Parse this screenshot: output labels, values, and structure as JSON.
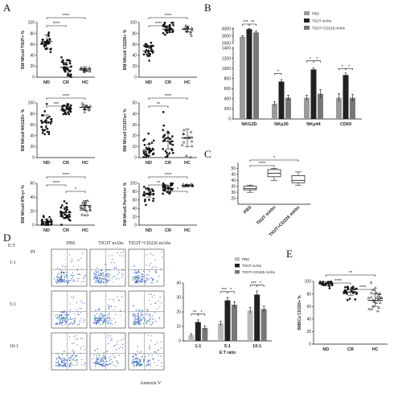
{
  "chart_data": [
    {
      "panel": "A",
      "type": "scatter",
      "ylabel": "BM NKcell TIGIT+ %",
      "categories": [
        "ND",
        "CR",
        "HC"
      ],
      "ylim": [
        0,
        100
      ],
      "yticks": [
        0,
        20,
        40,
        60,
        80,
        100
      ],
      "groups": [
        {
          "name": "ND",
          "mean": 65,
          "sd": 12
        },
        {
          "name": "CR",
          "mean": 18,
          "sd": 9
        },
        {
          "name": "HC",
          "mean": 15,
          "sd": 4
        }
      ],
      "significance": [
        "****",
        "****"
      ]
    },
    {
      "panel": "A",
      "type": "scatter",
      "ylabel": "BM NKcell CD226+ %",
      "categories": [
        "ND",
        "CR",
        "HC"
      ],
      "ylim": [
        0,
        100
      ],
      "yticks": [
        0,
        20,
        40,
        60,
        80,
        100
      ],
      "groups": [
        {
          "name": "ND",
          "mean": 48,
          "sd": 10
        },
        {
          "name": "CR",
          "mean": 88,
          "sd": 6
        },
        {
          "name": "HC",
          "mean": 88,
          "sd": 5
        }
      ],
      "significance": [
        "****",
        "****"
      ]
    },
    {
      "panel": "A",
      "type": "scatter",
      "ylabel": "BM NKcell NKG2D+ %",
      "categories": [
        "ND",
        "CR",
        "HC"
      ],
      "ylim": [
        0,
        100
      ],
      "yticks": [
        0,
        20,
        40,
        60,
        80,
        100
      ],
      "groups": [
        {
          "name": "ND",
          "mean": 65,
          "sd": 13
        },
        {
          "name": "CR",
          "mean": 87,
          "sd": 7
        },
        {
          "name": "HC",
          "mean": 92,
          "sd": 4
        }
      ],
      "significance": [
        "***",
        "****"
      ]
    },
    {
      "panel": "A",
      "type": "scatter",
      "ylabel": "BM NKcell CD107a+ %",
      "categories": [
        "ND",
        "CR",
        "HC"
      ],
      "ylim": [
        0,
        50
      ],
      "yticks": [
        0,
        10,
        20,
        30,
        40,
        50
      ],
      "groups": [
        {
          "name": "ND",
          "mean": 7,
          "sd": 5
        },
        {
          "name": "CR",
          "mean": 15,
          "sd": 7
        },
        {
          "name": "HC",
          "mean": 18,
          "sd": 8
        }
      ],
      "significance": [
        "**",
        "****"
      ]
    },
    {
      "panel": "A",
      "type": "scatter",
      "ylabel": "BM NKcell IFN-γ+ %",
      "categories": [
        "ND",
        "CR",
        "HC"
      ],
      "ylim": [
        0,
        60
      ],
      "yticks": [
        0,
        20,
        40,
        60
      ],
      "groups": [
        {
          "name": "ND",
          "mean": 5,
          "sd": 4
        },
        {
          "name": "CR",
          "mean": 18,
          "sd": 8
        },
        {
          "name": "HC",
          "mean": 28,
          "sd": 7
        }
      ],
      "significance": [
        "****",
        "*",
        "****"
      ]
    },
    {
      "panel": "A",
      "type": "scatter",
      "ylabel": "BM NKcell Perforin+ %",
      "categories": [
        "ND",
        "CR",
        "HC"
      ],
      "ylim": [
        0,
        100
      ],
      "yticks": [
        0,
        20,
        40,
        60,
        80,
        100
      ],
      "groups": [
        {
          "name": "ND",
          "mean": 75,
          "sd": 8
        },
        {
          "name": "CR",
          "mean": 88,
          "sd": 7
        },
        {
          "name": "HC",
          "mean": 95,
          "sd": 2
        }
      ],
      "significance": [
        "**",
        "*",
        "****"
      ]
    },
    {
      "panel": "B",
      "type": "bar",
      "categories": [
        "NKG2D",
        "NKp30",
        "NKp44",
        "CD69"
      ],
      "series": [
        {
          "name": "PBS",
          "values": [
            2900,
            300,
            420,
            420
          ],
          "errors": [
            150,
            40,
            50,
            80
          ],
          "color": "#9a9a9a"
        },
        {
          "name": "TIGIT mAbs",
          "values": [
            3950,
            740,
            980,
            870
          ],
          "errors": [
            100,
            40,
            30,
            40
          ],
          "color": "#222222"
        },
        {
          "name": "TIGIT+CD226 mAbs",
          "values": [
            3500,
            420,
            500,
            420
          ],
          "errors": [
            200,
            50,
            80,
            70
          ],
          "color": "#777777"
        }
      ],
      "yticks": [
        0,
        200,
        400,
        600,
        800,
        1000,
        1200,
        1400,
        2000,
        3000,
        4000
      ],
      "significance": [
        "***",
        "**",
        "*",
        "*",
        "*",
        "*",
        "*"
      ]
    },
    {
      "panel": "C",
      "type": "box",
      "categories": [
        "PBS",
        "TIGIT mAbs",
        "TIGIT+CD226 mAbs"
      ],
      "ylim": [
        20,
        55
      ],
      "yticks": [
        25,
        30,
        35,
        40,
        45,
        50
      ],
      "boxes": [
        {
          "min": 30,
          "q1": 32,
          "median": 33,
          "q3": 35,
          "max": 36
        },
        {
          "min": 40,
          "q1": 43,
          "median": 46,
          "q3": 49,
          "max": 50
        },
        {
          "min": 36,
          "q1": 38,
          "median": 40,
          "q3": 44,
          "max": 47
        }
      ],
      "significance": [
        "*",
        "****"
      ]
    },
    {
      "panel": "D",
      "type": "bar",
      "xlabel": "E:T ratio",
      "categories": [
        "1:1",
        "5:1",
        "10:1"
      ],
      "series": [
        {
          "name": "PBS",
          "values": [
            4,
            12,
            21
          ],
          "errors": [
            1,
            1.5,
            2
          ],
          "color": "#bbbbbb"
        },
        {
          "name": "TIGIT mAbs",
          "values": [
            13,
            28,
            32
          ],
          "errors": [
            1.5,
            2,
            2.5
          ],
          "color": "#222222"
        },
        {
          "name": "TIGIT+CD226 mAbs",
          "values": [
            9,
            25,
            22
          ],
          "errors": [
            1.5,
            2,
            2
          ],
          "color": "#777777"
        }
      ],
      "ylim": [
        0,
        40
      ],
      "yticks": [
        0,
        10,
        20,
        30,
        40
      ],
      "significance": [
        "**",
        "*",
        "***",
        "*",
        "***",
        "*"
      ]
    },
    {
      "panel": "E",
      "type": "scatter",
      "ylabel": "BMSCs CD155+ %",
      "categories": [
        "ND",
        "CR",
        "HC"
      ],
      "ylim": [
        0,
        100
      ],
      "yticks": [
        0,
        20,
        40,
        60,
        80,
        100
      ],
      "groups": [
        {
          "name": "ND",
          "mean": 96,
          "sd": 3
        },
        {
          "name": "CR",
          "mean": 83,
          "sd": 5
        },
        {
          "name": "HC",
          "mean": 70,
          "sd": 10
        }
      ],
      "significance": [
        "****",
        "****",
        "**"
      ]
    }
  ],
  "labels": {
    "panel_A": "A",
    "panel_B": "B",
    "panel_C": "C",
    "panel_D": "D",
    "panel_E": "E",
    "d_et": "E:T",
    "d_pi": "PI",
    "d_annexin": "Annexin V",
    "d_col_pbs": "PBS",
    "d_col_tigit": "TIGIT mAbs",
    "d_col_combo": "TIGIT+CD226 mAbs",
    "d_row_1": "1:1",
    "d_row_5": "5:1",
    "d_row_10": "10:1"
  },
  "colors": {
    "dark": "#222222",
    "mid": "#777777",
    "light": "#9a9a9a"
  }
}
